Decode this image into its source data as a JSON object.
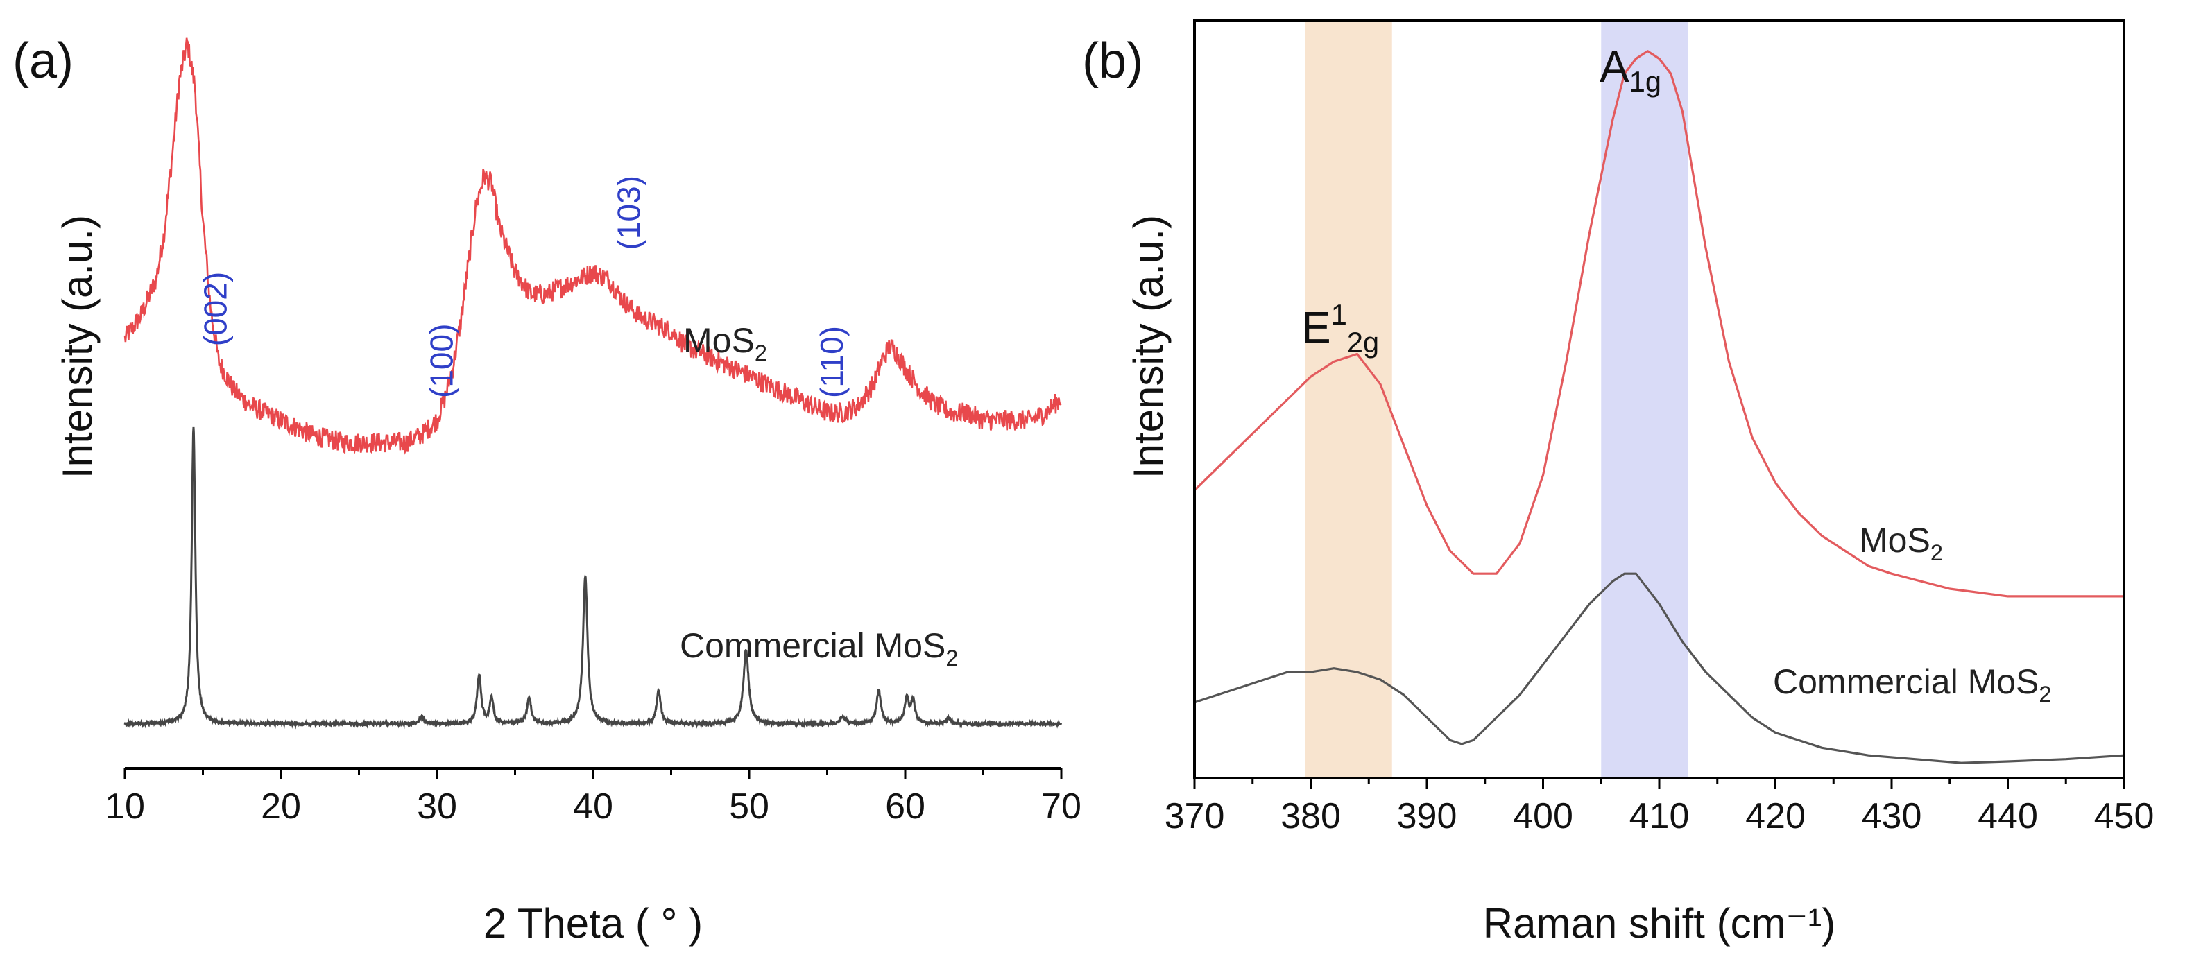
{
  "figure": {
    "panels": [
      "(a)",
      "(b)"
    ]
  },
  "chart_data": [
    {
      "type": "line",
      "panel": "(a)",
      "title": "",
      "xlabel": "2 Theta ( ° )",
      "ylabel": "Intensity (a.u.)",
      "xlim": [
        10,
        70
      ],
      "ylim": [
        0,
        1
      ],
      "xticks": [
        10,
        20,
        30,
        40,
        50,
        60,
        70
      ],
      "grid": false,
      "series": [
        {
          "name": "MoS2",
          "label_main": "MoS",
          "label_sub": "2",
          "color": "#e8484c",
          "noisy": true,
          "x": [
            10,
            11,
            12,
            12.5,
            13,
            13.5,
            14,
            14.5,
            15,
            15.5,
            16,
            17,
            18,
            19,
            20,
            22,
            24,
            26,
            28,
            29,
            30,
            30.5,
            31,
            31.5,
            32,
            32.5,
            33,
            33.5,
            34,
            35,
            36,
            37,
            38,
            39,
            40,
            41,
            42,
            43,
            44,
            45,
            46,
            47,
            48,
            49,
            50,
            51,
            52,
            53,
            54,
            55,
            56,
            57,
            58,
            58.5,
            59,
            59.5,
            60,
            61,
            62,
            63,
            64,
            65,
            66,
            67,
            68,
            69,
            70
          ],
          "y": [
            0.58,
            0.61,
            0.66,
            0.72,
            0.82,
            0.93,
            0.98,
            0.92,
            0.74,
            0.62,
            0.55,
            0.51,
            0.49,
            0.48,
            0.47,
            0.45,
            0.44,
            0.44,
            0.44,
            0.45,
            0.47,
            0.5,
            0.54,
            0.6,
            0.68,
            0.76,
            0.8,
            0.79,
            0.73,
            0.67,
            0.64,
            0.64,
            0.65,
            0.66,
            0.67,
            0.66,
            0.63,
            0.61,
            0.6,
            0.59,
            0.57,
            0.56,
            0.55,
            0.54,
            0.53,
            0.52,
            0.51,
            0.5,
            0.49,
            0.48,
            0.48,
            0.49,
            0.52,
            0.55,
            0.57,
            0.56,
            0.54,
            0.51,
            0.49,
            0.48,
            0.48,
            0.47,
            0.47,
            0.47,
            0.47,
            0.48,
            0.5
          ]
        },
        {
          "name": "Commercial MoS2",
          "label_main": "Commercial MoS",
          "label_sub": "2",
          "color": "#454545",
          "noisy": false,
          "baseline": 0.06,
          "peaks": [
            {
              "x": 14.4,
              "h": 0.4,
              "w": 0.18
            },
            {
              "x": 29.0,
              "h": 0.01,
              "w": 0.2
            },
            {
              "x": 32.7,
              "h": 0.065,
              "w": 0.2
            },
            {
              "x": 33.5,
              "h": 0.035,
              "w": 0.18
            },
            {
              "x": 35.9,
              "h": 0.035,
              "w": 0.2
            },
            {
              "x": 39.5,
              "h": 0.2,
              "w": 0.22
            },
            {
              "x": 44.2,
              "h": 0.045,
              "w": 0.2
            },
            {
              "x": 49.8,
              "h": 0.1,
              "w": 0.25
            },
            {
              "x": 56.0,
              "h": 0.01,
              "w": 0.25
            },
            {
              "x": 58.3,
              "h": 0.045,
              "w": 0.22
            },
            {
              "x": 60.1,
              "h": 0.035,
              "w": 0.2
            },
            {
              "x": 60.5,
              "h": 0.03,
              "w": 0.2
            },
            {
              "x": 62.8,
              "h": 0.008,
              "w": 0.2
            }
          ]
        }
      ],
      "annotations": [
        {
          "text": "(002)",
          "x": 16.5,
          "y": 0.57
        },
        {
          "text": "(100)",
          "x": 31.0,
          "y": 0.5
        },
        {
          "text": "(103)",
          "x": 43.0,
          "y": 0.7
        },
        {
          "text": "(110)",
          "x": 56.0,
          "y": 0.5
        }
      ]
    },
    {
      "type": "line",
      "panel": "(b)",
      "title": "",
      "xlabel": "Raman shift (cm⁻¹)",
      "ylabel": "Intensity (a.u.)",
      "xlim": [
        370,
        450
      ],
      "ylim": [
        0,
        1
      ],
      "xticks": [
        370,
        380,
        390,
        400,
        410,
        420,
        430,
        440,
        450
      ],
      "grid": false,
      "bands": [
        {
          "name": "E12g",
          "label_main": "E",
          "label_sup": "1",
          "label_sub": "2g",
          "x0": 379.5,
          "x1": 387,
          "color": "#f8e4cf"
        },
        {
          "name": "A1g",
          "label_main": "A",
          "label_sup": "",
          "label_sub": "1g",
          "x0": 405,
          "x1": 412.5,
          "color": "#d9dbf7"
        }
      ],
      "series": [
        {
          "name": "MoS2",
          "label_main": "MoS",
          "label_sub": "2",
          "color": "#e35b5e",
          "x": [
            370,
            372,
            374,
            376,
            378,
            380,
            382,
            384,
            386,
            388,
            390,
            392,
            394,
            396,
            398,
            400,
            402,
            404,
            406,
            407,
            408,
            409,
            410,
            411,
            412,
            414,
            416,
            418,
            420,
            422,
            424,
            426,
            428,
            430,
            435,
            440,
            445,
            450
          ],
          "y": [
            0.38,
            0.41,
            0.44,
            0.47,
            0.5,
            0.53,
            0.55,
            0.56,
            0.52,
            0.44,
            0.36,
            0.3,
            0.27,
            0.27,
            0.31,
            0.4,
            0.55,
            0.72,
            0.87,
            0.93,
            0.95,
            0.96,
            0.95,
            0.93,
            0.88,
            0.7,
            0.55,
            0.45,
            0.39,
            0.35,
            0.32,
            0.3,
            0.28,
            0.27,
            0.25,
            0.24,
            0.24,
            0.24
          ]
        },
        {
          "name": "Commercial MoS2",
          "label_main": "Commercial MoS",
          "label_sub": "2",
          "color": "#555555",
          "x": [
            370,
            372,
            374,
            376,
            378,
            380,
            382,
            384,
            386,
            388,
            390,
            392,
            393,
            394,
            396,
            398,
            400,
            402,
            404,
            406,
            407,
            408,
            410,
            412,
            414,
            416,
            418,
            420,
            424,
            428,
            432,
            436,
            440,
            445,
            450
          ],
          "y": [
            0.1,
            0.11,
            0.12,
            0.13,
            0.14,
            0.14,
            0.145,
            0.14,
            0.13,
            0.11,
            0.08,
            0.05,
            0.045,
            0.05,
            0.08,
            0.11,
            0.15,
            0.19,
            0.23,
            0.26,
            0.27,
            0.27,
            0.23,
            0.18,
            0.14,
            0.11,
            0.08,
            0.06,
            0.04,
            0.03,
            0.025,
            0.02,
            0.022,
            0.025,
            0.03
          ]
        }
      ]
    }
  ]
}
